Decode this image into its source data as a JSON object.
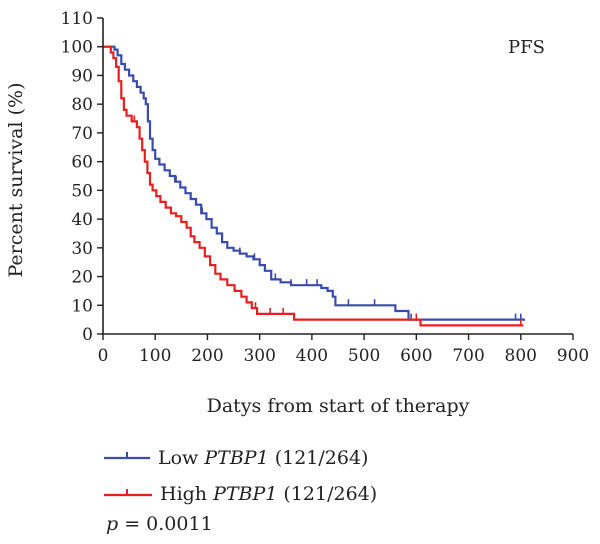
{
  "chart_data": {
    "type": "line",
    "title": "",
    "xlabel": "Datys from start of therapy",
    "ylabel": "Percent survival (%)",
    "xlim": [
      0,
      900
    ],
    "ylim": [
      0,
      110
    ],
    "xticks": [
      0,
      100,
      200,
      300,
      400,
      500,
      600,
      700,
      800,
      900
    ],
    "yticks": [
      0,
      10,
      20,
      30,
      40,
      50,
      60,
      70,
      80,
      90,
      100,
      110
    ],
    "grid": false,
    "annotation": "PFS",
    "pvalue": {
      "label": "p",
      "value": "= 0.0011"
    },
    "legend_position": "bottom-left",
    "series": [
      {
        "name_prefix": "Low ",
        "name_gene": "PTBP1",
        "name_suffix": " (121/264)",
        "color": "#3a4bb0",
        "points": [
          [
            0,
            100
          ],
          [
            15,
            100
          ],
          [
            22,
            99
          ],
          [
            28,
            97
          ],
          [
            35,
            94
          ],
          [
            42,
            92
          ],
          [
            50,
            90
          ],
          [
            58,
            88
          ],
          [
            65,
            86
          ],
          [
            72,
            84
          ],
          [
            78,
            82
          ],
          [
            82,
            80
          ],
          [
            86,
            74
          ],
          [
            90,
            68
          ],
          [
            95,
            64
          ],
          [
            100,
            61
          ],
          [
            108,
            59
          ],
          [
            118,
            57
          ],
          [
            128,
            55
          ],
          [
            138,
            53
          ],
          [
            148,
            51
          ],
          [
            158,
            49
          ],
          [
            168,
            47
          ],
          [
            178,
            45
          ],
          [
            188,
            42
          ],
          [
            198,
            40
          ],
          [
            208,
            37
          ],
          [
            218,
            35
          ],
          [
            228,
            32
          ],
          [
            238,
            30
          ],
          [
            250,
            29
          ],
          [
            262,
            28
          ],
          [
            275,
            27
          ],
          [
            288,
            26
          ],
          [
            300,
            24
          ],
          [
            310,
            22
          ],
          [
            322,
            19
          ],
          [
            340,
            18
          ],
          [
            360,
            17
          ],
          [
            380,
            17
          ],
          [
            400,
            17
          ],
          [
            418,
            16
          ],
          [
            430,
            15
          ],
          [
            440,
            13
          ],
          [
            445,
            10
          ],
          [
            500,
            10
          ],
          [
            530,
            10
          ],
          [
            560,
            8
          ],
          [
            582,
            8
          ],
          [
            585,
            5
          ],
          [
            640,
            5
          ],
          [
            700,
            5
          ],
          [
            760,
            5
          ],
          [
            800,
            5
          ],
          [
            808,
            5
          ]
        ],
        "censor_marks": [
          140,
          190,
          262,
          290,
          330,
          360,
          390,
          410,
          470,
          520,
          590,
          790,
          800
        ]
      },
      {
        "name_prefix": "High ",
        "name_gene": "PTBP1",
        "name_suffix": " (121/264)",
        "color": "#e62020",
        "points": [
          [
            0,
            100
          ],
          [
            10,
            100
          ],
          [
            15,
            98
          ],
          [
            20,
            96
          ],
          [
            25,
            93
          ],
          [
            30,
            88
          ],
          [
            35,
            82
          ],
          [
            40,
            78
          ],
          [
            45,
            76
          ],
          [
            55,
            74
          ],
          [
            65,
            72
          ],
          [
            70,
            68
          ],
          [
            75,
            64
          ],
          [
            80,
            60
          ],
          [
            85,
            56
          ],
          [
            90,
            52
          ],
          [
            95,
            50
          ],
          [
            102,
            48
          ],
          [
            110,
            46
          ],
          [
            120,
            44
          ],
          [
            130,
            42
          ],
          [
            140,
            41
          ],
          [
            150,
            39
          ],
          [
            160,
            37
          ],
          [
            168,
            34
          ],
          [
            175,
            32
          ],
          [
            185,
            30
          ],
          [
            195,
            27
          ],
          [
            205,
            24
          ],
          [
            215,
            21
          ],
          [
            225,
            19
          ],
          [
            238,
            17
          ],
          [
            252,
            15
          ],
          [
            265,
            13
          ],
          [
            275,
            11
          ],
          [
            285,
            9
          ],
          [
            295,
            7
          ],
          [
            330,
            7
          ],
          [
            363,
            7
          ],
          [
            366,
            5
          ],
          [
            420,
            5
          ],
          [
            500,
            5
          ],
          [
            560,
            5
          ],
          [
            600,
            5
          ],
          [
            608,
            3
          ],
          [
            700,
            3
          ],
          [
            800,
            3
          ],
          [
            805,
            3
          ]
        ],
        "censor_marks": [
          30,
          60,
          150,
          292,
          320,
          345,
          600,
          800
        ]
      }
    ]
  }
}
